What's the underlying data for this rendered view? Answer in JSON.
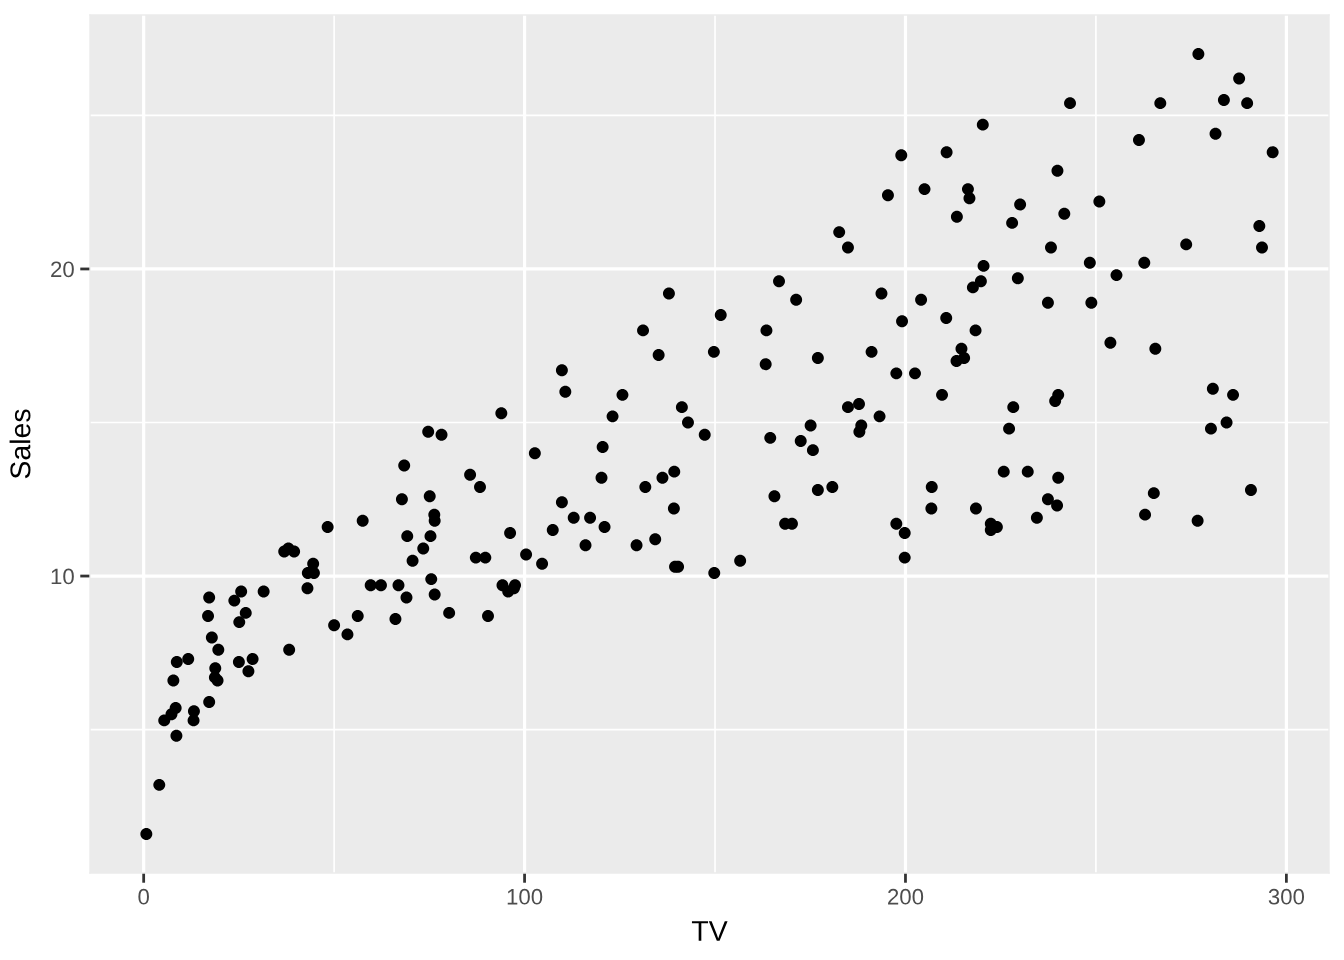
{
  "chart_data": {
    "type": "scatter",
    "xlabel": "TV",
    "ylabel": "Sales",
    "color": "#000000",
    "marker": "circle",
    "grid": true,
    "xlim": [
      -14.09,
      311.19
    ],
    "ylim": [
      0.33,
      28.27
    ],
    "xticks": [
      0,
      {
        "value": 50,
        "label": null
      },
      100,
      {
        "value": 150,
        "label": null
      },
      200,
      {
        "value": 250,
        "label": null
      },
      300
    ],
    "yticks": [
      {
        "value": 5,
        "label": null
      },
      10,
      {
        "value": 15,
        "label": null
      },
      20,
      {
        "value": 25,
        "label": null
      }
    ],
    "x": [
      230.1,
      44.5,
      17.2,
      151.5,
      180.8,
      8.7,
      57.5,
      120.2,
      8.6,
      199.8,
      66.1,
      214.7,
      23.8,
      97.5,
      204.1,
      195.4,
      67.8,
      281.4,
      69.2,
      147.3,
      218.4,
      237.4,
      13.2,
      228.3,
      62.3,
      262.9,
      142.9,
      240.1,
      248.8,
      70.6,
      292.9,
      112.9,
      97.2,
      265.6,
      95.7,
      290.7,
      266.9,
      74.7,
      43.1,
      228,
      202.5,
      177,
      293.6,
      206.9,
      25.1,
      175.1,
      89.7,
      239.9,
      227.2,
      66.9,
      199.8,
      100.4,
      216.4,
      182.6,
      262.7,
      198.9,
      7.3,
      136.2,
      210.8,
      210.7,
      53.5,
      261.3,
      239.3,
      102.7,
      131.1,
      69,
      31.5,
      139.3,
      237.4,
      216.8,
      199.1,
      109.8,
      26.8,
      129.4,
      213.4,
      16.9,
      27.5,
      120.5,
      5.4,
      116,
      76.4,
      239.8,
      75.3,
      68.4,
      213.5,
      193.2,
      76.3,
      110.7,
      88.3,
      109.8,
      134.3,
      28.6,
      217.7,
      250.9,
      107.4,
      163.3,
      197.6,
      184.9,
      289.7,
      135.2,
      222.4,
      296.4,
      280.2,
      187.9,
      238.2,
      137.9,
      25,
      90.4,
      13.1,
      255.4,
      225.8,
      241.7,
      175.7,
      209.6,
      78.2,
      75.1,
      139.2,
      76.4,
      125.7,
      19.4,
      141.3,
      18.8,
      224,
      123.1,
      229.5,
      87.2,
      7.8,
      80.2,
      220.3,
      59.6,
      0.7,
      265.2,
      8.4,
      219.8,
      36.9,
      48.3,
      25.6,
      273.7,
      43,
      184.9,
      73.4,
      193.7,
      220.5,
      104.6,
      96.2,
      140.3,
      240.1,
      243.2,
      38,
      44.7,
      280.7,
      121,
      197.6,
      171.3,
      187.8,
      4.1,
      93.9,
      149.8,
      11.7,
      131.7,
      172.5,
      85.7,
      188.4,
      163.5,
      117.2,
      234.5,
      17.9,
      206.8,
      215.4,
      284.3,
      50,
      164.5,
      19.6,
      168.4,
      222.4,
      276.9,
      248.4,
      170.2,
      276.7,
      165.6,
      156.6,
      218.5,
      56.2,
      287.6,
      253.8,
      205,
      139.5,
      191.1,
      286,
      18.7,
      39.5,
      75.5,
      17.2,
      166.8,
      149.7,
      38.2,
      94.2,
      177,
      283.6,
      232.1
    ],
    "values": [
      22.1,
      10.4,
      9.3,
      18.5,
      12.9,
      7.2,
      11.8,
      13.2,
      4.8,
      10.6,
      8.6,
      17.4,
      9.2,
      9.7,
      19,
      22.4,
      12.5,
      24.4,
      11.3,
      14.6,
      18,
      12.5,
      5.6,
      15.5,
      9.7,
      12,
      15,
      15.9,
      18.9,
      10.5,
      21.4,
      11.9,
      9.6,
      17.4,
      9.5,
      12.8,
      25.4,
      14.7,
      10.1,
      21.5,
      16.6,
      17.1,
      20.7,
      12.9,
      8.5,
      14.9,
      10.6,
      23.2,
      14.8,
      9.7,
      11.4,
      10.7,
      22.6,
      21.2,
      20.2,
      23.7,
      5.5,
      13.2,
      23.8,
      18.4,
      8.1,
      24.2,
      15.7,
      14,
      18,
      9.3,
      9.5,
      13.4,
      18.9,
      22.3,
      18.3,
      12.4,
      8.8,
      11,
      17,
      8.7,
      6.9,
      14.2,
      5.3,
      11,
      11.8,
      12.3,
      11.3,
      13.6,
      21.7,
      15.2,
      12,
      16,
      12.9,
      16.7,
      11.2,
      7.3,
      19.4,
      22.2,
      11.5,
      16.9,
      11.7,
      15.5,
      25.4,
      17.2,
      11.7,
      23.8,
      14.8,
      14.7,
      20.7,
      19.2,
      7.2,
      8.7,
      5.3,
      19.8,
      13.4,
      21.8,
      14.1,
      15.9,
      14.6,
      12.6,
      12.2,
      9.4,
      15.9,
      6.6,
      15.5,
      7,
      11.6,
      15.2,
      19.7,
      10.6,
      6.6,
      8.8,
      24.7,
      9.7,
      1.6,
      12.7,
      5.7,
      19.6,
      10.8,
      11.6,
      9.5,
      20.8,
      9.6,
      20.7,
      10.9,
      19.2,
      20.1,
      10.4,
      11.4,
      10.3,
      13.2,
      25.4,
      10.9,
      10.1,
      16.1,
      11.6,
      16.6,
      19,
      15.6,
      3.2,
      15.3,
      10.1,
      7.3,
      12.9,
      14.4,
      13.3,
      14.9,
      18,
      11.9,
      11.9,
      8,
      12.2,
      17.1,
      15,
      8.4,
      14.5,
      7.6,
      11.7,
      11.5,
      27,
      20.2,
      11.7,
      11.8,
      12.6,
      10.5,
      12.2,
      8.7,
      26.2,
      17.6,
      22.6,
      10.3,
      17.3,
      15.9,
      6.7,
      10.8,
      9.9,
      5.9,
      19.6,
      17.3,
      7.6,
      9.7,
      12.8,
      25.5,
      13.4
    ]
  }
}
